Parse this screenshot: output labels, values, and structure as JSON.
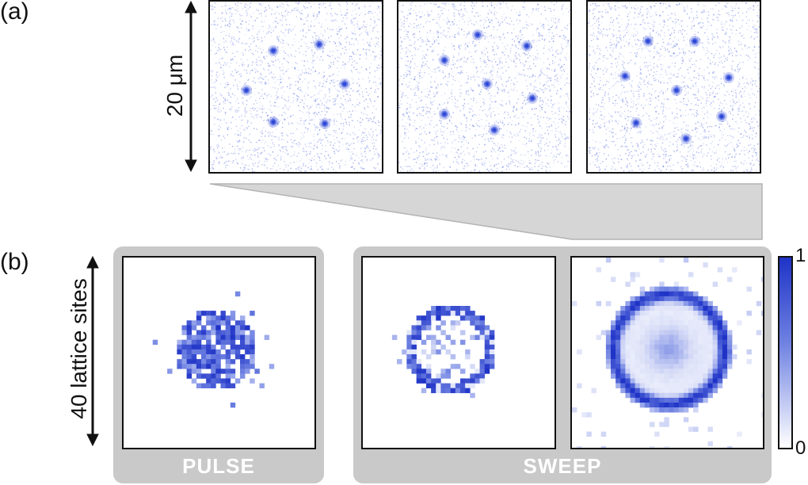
{
  "panel_a": {
    "label": "(a)",
    "scale_label": "20 μm",
    "dot_color": "#2a45d6",
    "noise_color": "#5c74e0"
  },
  "panel_b": {
    "label": "(b)",
    "scale_label": "40 lattice sites",
    "groups": [
      {
        "caption": "PULSE"
      },
      {
        "caption": "SWEEP"
      }
    ],
    "colorbar": {
      "max_label": "1",
      "min_label": "0",
      "color_max": "#1f33c7",
      "color_min": "#ffffff"
    }
  }
}
